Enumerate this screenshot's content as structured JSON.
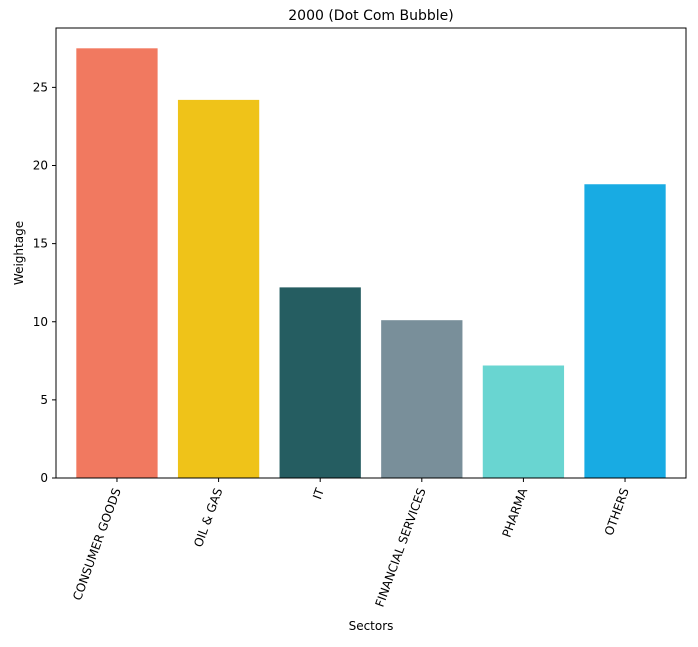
{
  "chart_data": {
    "type": "bar",
    "title": "2000 (Dot Com Bubble)",
    "xlabel": "Sectors",
    "ylabel": "Weightage",
    "categories": [
      "CONSUMER GOODS",
      "OIL & GAS",
      "IT",
      "FINANCIAL SERVICES",
      "PHARMA",
      "OTHERS"
    ],
    "values": [
      27.5,
      24.2,
      12.2,
      10.1,
      7.2,
      18.8
    ],
    "colors": [
      "#f17960",
      "#efc319",
      "#255d61",
      "#798f9a",
      "#69d5d1",
      "#18abe3"
    ],
    "ylim": [
      0,
      28.8
    ],
    "yticks": [
      "0",
      "5",
      "10",
      "15",
      "20",
      "25"
    ],
    "grid": false,
    "legend": "none"
  }
}
